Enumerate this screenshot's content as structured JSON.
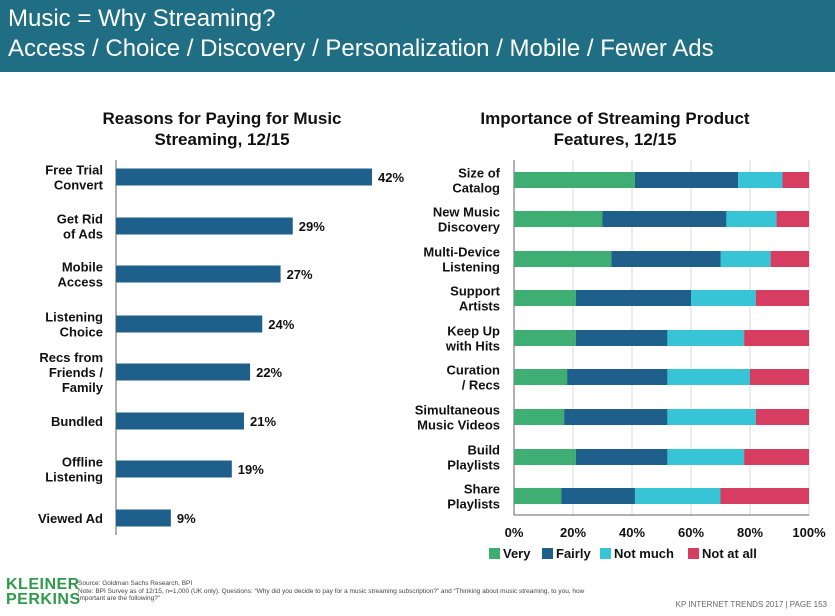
{
  "header": {
    "title_line1": "Music = Why Streaming?",
    "title_line2": "Access / Choice / Discovery / Personalization / Mobile / Fewer Ads"
  },
  "colors": {
    "header_bg": "#1f6e84",
    "bar": "#1f5f8b",
    "very": "#3fae73",
    "fairly": "#1f5f8b",
    "not_much": "#36c4d6",
    "not_at_all": "#d63d61"
  },
  "chart_data": [
    {
      "type": "bar",
      "orientation": "horizontal",
      "title": "Reasons for Paying for Music Streaming, 12/15",
      "title_lines": [
        "Reasons for Paying for Music",
        "Streaming, 12/15"
      ],
      "categories": [
        [
          "Free Trial",
          "Convert"
        ],
        [
          "Get Rid",
          "of Ads"
        ],
        [
          "Mobile",
          "Access"
        ],
        [
          "Listening",
          "Choice"
        ],
        [
          "Recs from",
          "Friends /",
          "Family"
        ],
        [
          "Bundled"
        ],
        [
          "Offline",
          "Listening"
        ],
        [
          "Viewed Ad"
        ]
      ],
      "values": [
        42,
        29,
        27,
        24,
        22,
        21,
        19,
        9
      ],
      "value_labels": [
        "42%",
        "29%",
        "27%",
        "24%",
        "22%",
        "21%",
        "19%",
        "9%"
      ],
      "unit": "%"
    },
    {
      "type": "bar",
      "orientation": "horizontal",
      "stacked": true,
      "title": "Importance of Streaming Product Features, 12/15",
      "title_lines": [
        "Importance of Streaming Product",
        "Features, 12/15"
      ],
      "categories": [
        [
          "Size of",
          "Catalog"
        ],
        [
          "New Music",
          "Discovery"
        ],
        [
          "Multi-Device",
          "Listening"
        ],
        [
          "Support",
          "Artists"
        ],
        [
          "Keep Up",
          "with Hits"
        ],
        [
          "Curation",
          "/ Recs"
        ],
        [
          "Simultaneous",
          "Music Videos"
        ],
        [
          "Build",
          "Playlists"
        ],
        [
          "Share",
          "Playlists"
        ]
      ],
      "series": [
        {
          "name": "Very",
          "values": [
            41,
            30,
            33,
            21,
            21,
            18,
            17,
            21,
            16
          ]
        },
        {
          "name": "Fairly",
          "values": [
            35,
            42,
            37,
            39,
            31,
            34,
            35,
            31,
            25
          ]
        },
        {
          "name": "Not much",
          "values": [
            15,
            17,
            17,
            22,
            26,
            28,
            30,
            26,
            29
          ]
        },
        {
          "name": "Not at all",
          "values": [
            9,
            11,
            13,
            18,
            22,
            20,
            18,
            22,
            30
          ]
        }
      ],
      "xlim": [
        0,
        100
      ],
      "x_ticks": [
        "0%",
        "20%",
        "40%",
        "60%",
        "80%",
        "100%"
      ],
      "legend": "bottom"
    }
  ],
  "footer": {
    "logo_line1": "KLEINER",
    "logo_line2": "PERKINS",
    "source": "Source: Goldman Sachs Research, BPI",
    "note": "Note: BPI Survey as of 12/15, n=1,000 (UK only). Questions: “Why did you decide to pay for a music streaming subscription?” and “Thinking about music streaming, to you, how important are the following?”",
    "page": "KP INTERNET TRENDS 2017 | PAGE 153"
  }
}
